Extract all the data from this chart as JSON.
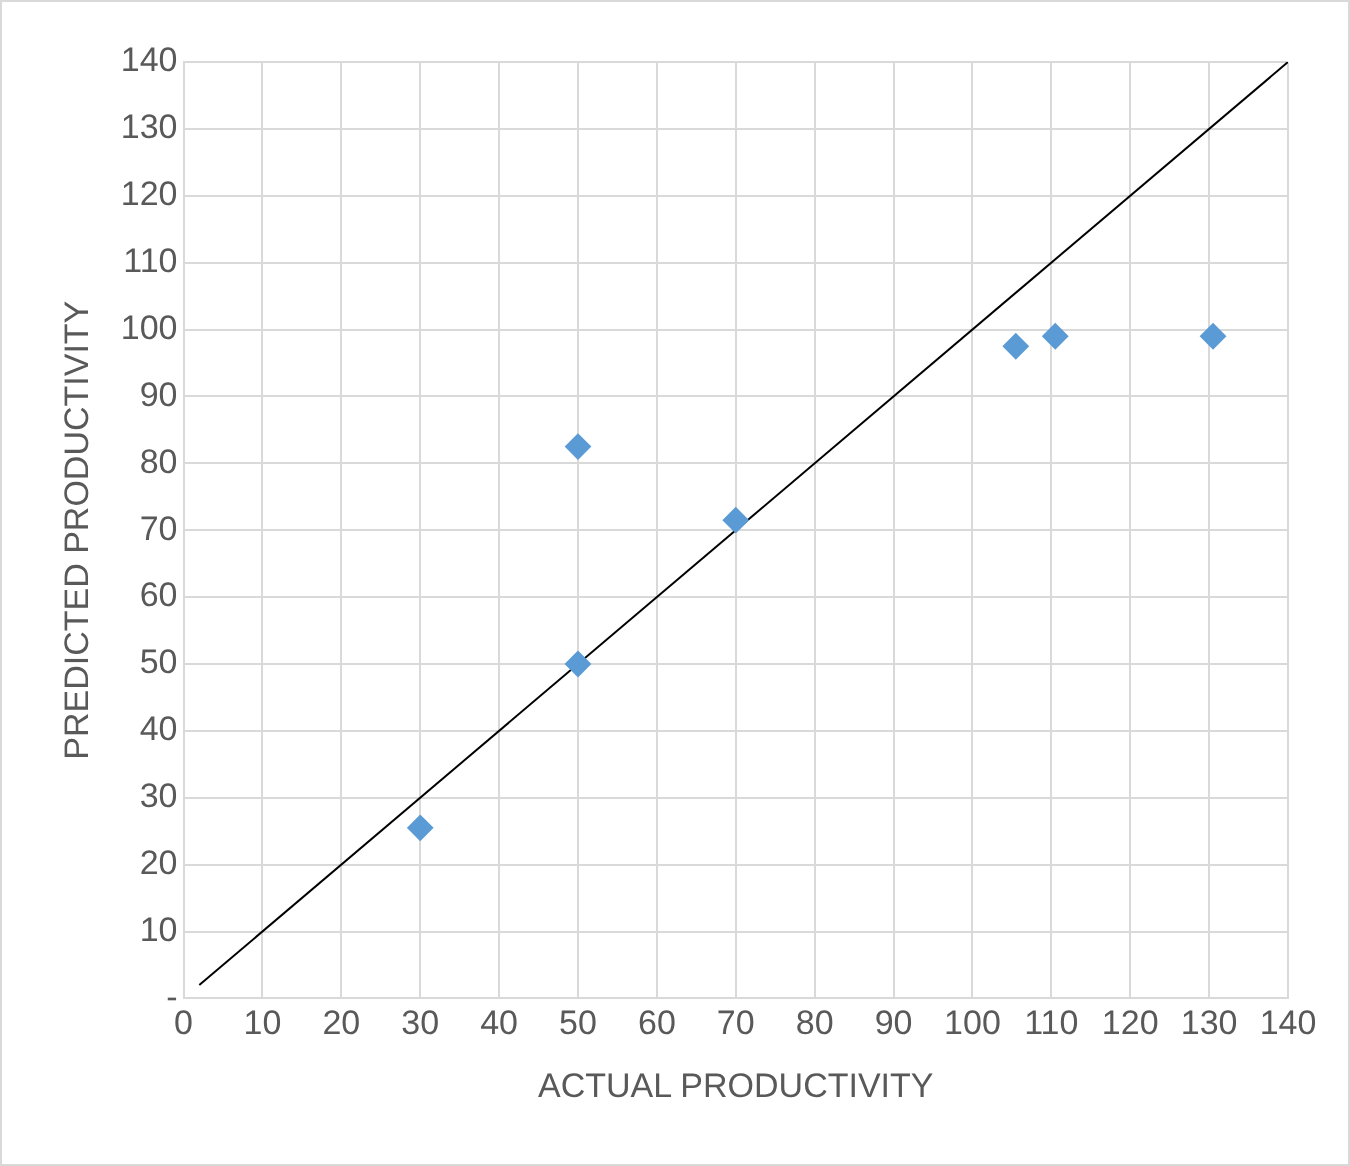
{
  "chart_data": {
    "type": "scatter",
    "xlabel": "ACTUAL PRODUCTIVITY",
    "ylabel": "PREDICTED PRODUCTIVITY",
    "series": [
      {
        "color": "#5b9bd5",
        "x": [
          30,
          50,
          50,
          70,
          105.5,
          110.5,
          130.5
        ],
        "values": [
          25.5,
          50,
          82.5,
          71.5,
          97.5,
          99,
          99
        ]
      },
      {
        "type": "line",
        "color": "#000000",
        "x": [
          2,
          140
        ],
        "values": [
          2,
          140
        ],
        "marker": "none"
      }
    ],
    "xlim": [
      0,
      140
    ],
    "xticks": [
      0,
      10,
      20,
      30,
      40,
      50,
      60,
      70,
      80,
      90,
      100,
      110,
      120,
      130,
      140
    ],
    "ylim": [
      0,
      140
    ],
    "yticks": [
      {
        "value": 0,
        "label": "-"
      },
      10,
      20,
      30,
      40,
      50,
      60,
      70,
      80,
      90,
      100,
      110,
      120,
      130,
      140
    ],
    "grid": true,
    "legend": false,
    "marker": "diamond"
  }
}
